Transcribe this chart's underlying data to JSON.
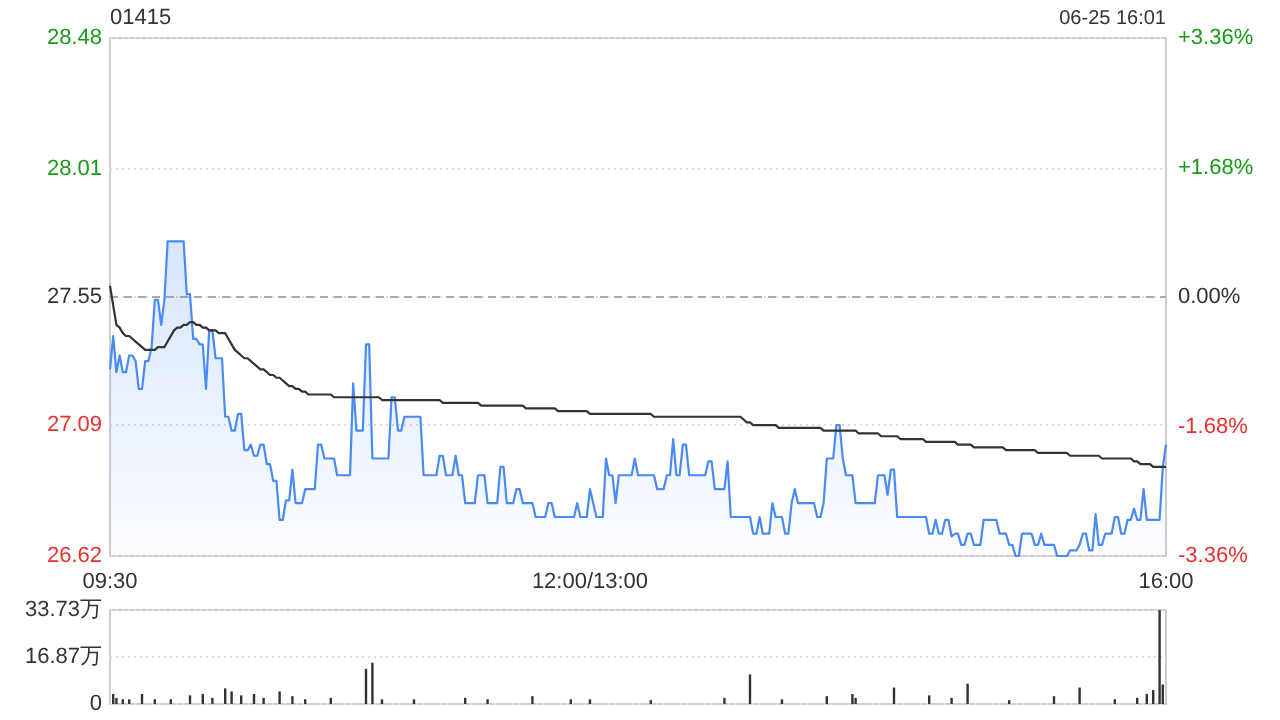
{
  "chart_data": [
    {
      "type": "line",
      "title": "01415",
      "annotations": [
        "06-25 16:01"
      ],
      "categories": [
        "09:30",
        null,
        null,
        null,
        null,
        null,
        null,
        null,
        null,
        null,
        null,
        null,
        null,
        null,
        null,
        null,
        null,
        null,
        null,
        null,
        null,
        null,
        null,
        null,
        null,
        null,
        null,
        null,
        null,
        null,
        null,
        null,
        null,
        null,
        null,
        null,
        null,
        null,
        null,
        null,
        null,
        null,
        null,
        null,
        null,
        null,
        null,
        null,
        null,
        null,
        null,
        null,
        null,
        null,
        null,
        null,
        null,
        null,
        null,
        null,
        null,
        null,
        null,
        null,
        null,
        null,
        null,
        null,
        null,
        null,
        null,
        null,
        null,
        null,
        null,
        null,
        null,
        null,
        null,
        null,
        null,
        null,
        null,
        null,
        null,
        null,
        null,
        null,
        null,
        null,
        null,
        null,
        null,
        null,
        null,
        null,
        null,
        null,
        null,
        null,
        null,
        null,
        null,
        null,
        null,
        null,
        null,
        null,
        null,
        null,
        null,
        null,
        null,
        null,
        null,
        null,
        null,
        null,
        null,
        null,
        null,
        null,
        null,
        null,
        null,
        null,
        null,
        null,
        null,
        null,
        null,
        null,
        null,
        null,
        null,
        null,
        null,
        null,
        null,
        null,
        null,
        null,
        null,
        null,
        null,
        null,
        null,
        null,
        null,
        null,
        "12:00/13:00",
        null,
        null,
        null,
        null,
        null,
        null,
        null,
        null,
        null,
        null,
        null,
        null,
        null,
        null,
        null,
        null,
        null,
        null,
        null,
        null,
        null,
        null,
        null,
        null,
        null,
        null,
        null,
        null,
        null,
        null,
        null,
        null,
        null,
        null,
        null,
        null,
        null,
        null,
        null,
        null,
        null,
        null,
        null,
        null,
        null,
        null,
        null,
        null,
        null,
        null,
        null,
        null,
        null,
        null,
        null,
        null,
        null,
        null,
        null,
        null,
        null,
        null,
        null,
        null,
        null,
        null,
        null,
        null,
        null,
        null,
        null,
        null,
        null,
        null,
        null,
        null,
        null,
        null,
        null,
        null,
        null,
        null,
        null,
        null,
        null,
        null,
        null,
        null,
        null,
        null,
        null,
        null,
        null,
        null,
        null,
        null,
        null,
        null,
        null,
        null,
        null,
        null,
        null,
        null,
        null,
        null,
        null,
        null,
        null,
        null,
        null,
        null,
        null,
        null,
        null,
        null,
        null,
        null,
        null,
        null,
        null,
        null,
        null,
        null,
        null,
        null,
        null,
        null,
        null,
        null,
        null,
        null,
        null,
        null,
        null,
        null,
        null,
        null,
        null,
        null,
        null,
        null,
        null,
        null,
        null,
        null,
        null,
        null,
        null,
        null,
        null,
        null,
        null,
        null,
        null,
        null,
        null,
        null,
        null,
        null,
        null,
        null,
        null,
        null,
        null,
        null,
        null,
        null,
        null,
        null,
        null,
        null,
        null,
        null,
        null,
        null,
        null,
        null,
        null,
        "16:00"
      ],
      "ylim": [
        26.62,
        28.48
      ],
      "yticks": [
        26.62,
        27.09,
        27.55,
        28.01,
        28.48
      ],
      "y2lim": [
        -3.36,
        3.36
      ],
      "y2ticks": [
        {
          "value": -3.36,
          "label": "-3.36%"
        },
        {
          "value": -1.68,
          "label": "-1.68%"
        },
        {
          "value": 0,
          "label": "0.00%"
        },
        {
          "value": 1.68,
          "label": "+1.68%"
        },
        {
          "value": 3.36,
          "label": "+3.36%"
        }
      ],
      "grid": "y",
      "ref_lines": [
        {
          "axis": "y",
          "value": 27.55,
          "color": "#aaaaaa",
          "line_style": "dashed"
        }
      ],
      "series": [
        {
          "type": "area",
          "color": "#4a8af4",
          "values": [
            27.29,
            27.41,
            27.28,
            27.34,
            27.28,
            27.28,
            27.34,
            27.34,
            27.32,
            27.22,
            27.22,
            27.32,
            27.32,
            27.37,
            27.54,
            27.54,
            27.45,
            27.54,
            27.75,
            27.75,
            27.75,
            27.75,
            27.75,
            27.75,
            27.56,
            27.56,
            27.4,
            27.4,
            27.38,
            27.38,
            27.22,
            27.43,
            27.43,
            27.33,
            27.33,
            27.33,
            27.12,
            27.12,
            27.07,
            27.07,
            27.13,
            27.13,
            27.0,
            27.0,
            27.02,
            26.98,
            26.98,
            27.02,
            27.02,
            26.95,
            26.95,
            26.89,
            26.89,
            26.75,
            26.75,
            26.82,
            26.82,
            26.93,
            26.81,
            26.81,
            26.81,
            26.86,
            26.86,
            26.86,
            26.86,
            27.02,
            27.02,
            26.97,
            26.97,
            26.97,
            26.97,
            26.91,
            26.91,
            26.91,
            26.91,
            26.91,
            27.24,
            27.07,
            27.07,
            27.07,
            27.38,
            27.38,
            26.97,
            26.97,
            26.97,
            26.97,
            26.97,
            26.97,
            27.19,
            27.19,
            27.07,
            27.07,
            27.12,
            27.12,
            27.12,
            27.12,
            27.12,
            27.12,
            26.91,
            26.91,
            26.91,
            26.91,
            26.91,
            26.98,
            26.98,
            26.91,
            26.91,
            26.91,
            26.98,
            26.91,
            26.91,
            26.81,
            26.81,
            26.81,
            26.81,
            26.91,
            26.91,
            26.91,
            26.81,
            26.81,
            26.81,
            26.81,
            26.94,
            26.94,
            26.81,
            26.81,
            26.81,
            26.86,
            26.86,
            26.81,
            26.81,
            26.81,
            26.81,
            26.76,
            26.76,
            26.76,
            26.76,
            26.81,
            26.81,
            26.76,
            26.76,
            26.76,
            26.76,
            26.76,
            26.76,
            26.76,
            26.81,
            26.76,
            26.76,
            26.76,
            26.86,
            26.81,
            26.76,
            26.76,
            26.76,
            26.97,
            26.91,
            26.91,
            26.81,
            26.91,
            26.91,
            26.91,
            26.91,
            26.91,
            26.97,
            26.91,
            26.91,
            26.91,
            26.91,
            26.91,
            26.91,
            26.86,
            26.86,
            26.86,
            26.91,
            26.91,
            27.04,
            26.91,
            26.91,
            27.02,
            27.02,
            26.91,
            26.91,
            26.91,
            26.91,
            26.91,
            26.91,
            26.96,
            26.96,
            26.86,
            26.86,
            26.86,
            26.86,
            26.96,
            26.76,
            26.76,
            26.76,
            26.76,
            26.76,
            26.76,
            26.76,
            26.7,
            26.7,
            26.76,
            26.7,
            26.7,
            26.7,
            26.81,
            26.76,
            26.76,
            26.76,
            26.7,
            26.7,
            26.81,
            26.86,
            26.81,
            26.81,
            26.81,
            26.81,
            26.81,
            26.81,
            26.76,
            26.76,
            26.81,
            26.97,
            26.97,
            26.97,
            27.09,
            27.09,
            26.97,
            26.91,
            26.91,
            26.91,
            26.81,
            26.81,
            26.81,
            26.81,
            26.81,
            26.81,
            26.81,
            26.91,
            26.91,
            26.91,
            26.84,
            26.93,
            26.93,
            26.76,
            26.76,
            26.76,
            26.76,
            26.76,
            26.76,
            26.76,
            26.76,
            26.76,
            26.76,
            26.7,
            26.7,
            26.75,
            26.7,
            26.7,
            26.75,
            26.75,
            26.69,
            26.7,
            26.7,
            26.66,
            26.66,
            26.7,
            26.7,
            26.66,
            26.66,
            26.66,
            26.75,
            26.75,
            26.75,
            26.75,
            26.75,
            26.7,
            26.7,
            26.7,
            26.66,
            26.66,
            26.62,
            26.62,
            26.7,
            26.7,
            26.7,
            26.7,
            26.66,
            26.66,
            26.7,
            26.66,
            26.66,
            26.66,
            26.66,
            26.62,
            26.62,
            26.62,
            26.62,
            26.64,
            26.64,
            26.64,
            26.66,
            26.7,
            26.7,
            26.64,
            26.64,
            26.77,
            26.66,
            26.66,
            26.7,
            26.7,
            26.7,
            26.76,
            26.76,
            26.7,
            26.7,
            26.75,
            26.75,
            26.79,
            26.75,
            26.75,
            26.86,
            26.75,
            26.75,
            26.75,
            26.75,
            26.75,
            26.94,
            27.02
          ]
        },
        {
          "color": "#333333",
          "values": [
            27.59,
            27.52,
            27.45,
            27.44,
            27.42,
            27.41,
            27.41,
            27.4,
            27.39,
            27.38,
            27.37,
            27.36,
            27.36,
            27.36,
            27.36,
            27.37,
            27.37,
            27.37,
            27.39,
            27.41,
            27.43,
            27.44,
            27.44,
            27.45,
            27.45,
            27.46,
            27.46,
            27.45,
            27.45,
            27.44,
            27.44,
            27.43,
            27.43,
            27.43,
            27.42,
            27.42,
            27.42,
            27.4,
            27.38,
            27.36,
            27.35,
            27.34,
            27.33,
            27.33,
            27.32,
            27.31,
            27.3,
            27.29,
            27.29,
            27.28,
            27.27,
            27.27,
            27.26,
            27.26,
            27.25,
            27.24,
            27.23,
            27.23,
            27.22,
            27.22,
            27.21,
            27.21,
            27.2,
            27.2,
            27.2,
            27.2,
            27.2,
            27.2,
            27.2,
            27.2,
            27.19,
            27.19,
            27.19,
            27.19,
            27.19,
            27.19,
            27.19,
            27.19,
            27.19,
            27.19,
            27.19,
            27.19,
            27.19,
            27.19,
            27.19,
            27.18,
            27.18,
            27.18,
            27.18,
            27.18,
            27.18,
            27.18,
            27.18,
            27.18,
            27.18,
            27.18,
            27.18,
            27.18,
            27.18,
            27.18,
            27.18,
            27.18,
            27.18,
            27.18,
            27.17,
            27.17,
            27.17,
            27.17,
            27.17,
            27.17,
            27.17,
            27.17,
            27.17,
            27.17,
            27.17,
            27.17,
            27.16,
            27.16,
            27.16,
            27.16,
            27.16,
            27.16,
            27.16,
            27.16,
            27.16,
            27.16,
            27.16,
            27.16,
            27.16,
            27.16,
            27.15,
            27.15,
            27.15,
            27.15,
            27.15,
            27.15,
            27.15,
            27.15,
            27.15,
            27.15,
            27.14,
            27.14,
            27.14,
            27.14,
            27.14,
            27.14,
            27.14,
            27.14,
            27.14,
            27.14,
            27.13,
            27.13,
            27.13,
            27.13,
            27.13,
            27.13,
            27.13,
            27.13,
            27.13,
            27.13,
            27.13,
            27.13,
            27.13,
            27.13,
            27.13,
            27.13,
            27.13,
            27.13,
            27.13,
            27.13,
            27.12,
            27.12,
            27.12,
            27.12,
            27.12,
            27.12,
            27.12,
            27.12,
            27.12,
            27.12,
            27.12,
            27.12,
            27.12,
            27.12,
            27.12,
            27.12,
            27.12,
            27.12,
            27.12,
            27.12,
            27.12,
            27.12,
            27.12,
            27.12,
            27.12,
            27.12,
            27.12,
            27.12,
            27.11,
            27.1,
            27.1,
            27.09,
            27.09,
            27.09,
            27.09,
            27.09,
            27.09,
            27.09,
            27.09,
            27.08,
            27.08,
            27.08,
            27.08,
            27.08,
            27.08,
            27.08,
            27.08,
            27.08,
            27.08,
            27.08,
            27.08,
            27.08,
            27.08,
            27.07,
            27.07,
            27.07,
            27.07,
            27.07,
            27.07,
            27.07,
            27.07,
            27.07,
            27.07,
            27.07,
            27.06,
            27.06,
            27.06,
            27.06,
            27.06,
            27.06,
            27.06,
            27.05,
            27.05,
            27.05,
            27.05,
            27.05,
            27.05,
            27.04,
            27.04,
            27.04,
            27.04,
            27.04,
            27.04,
            27.04,
            27.04,
            27.03,
            27.03,
            27.03,
            27.03,
            27.03,
            27.03,
            27.03,
            27.03,
            27.03,
            27.03,
            27.02,
            27.02,
            27.02,
            27.02,
            27.02,
            27.01,
            27.01,
            27.01,
            27.01,
            27.01,
            27.01,
            27.01,
            27.01,
            27.01,
            27.01,
            27.0,
            27.0,
            27.0,
            27.0,
            27.0,
            27.0,
            27.0,
            27.0,
            27.0,
            27.0,
            26.99,
            26.99,
            26.99,
            26.99,
            26.99,
            26.99,
            26.99,
            26.99,
            26.99,
            26.99,
            26.98,
            26.98,
            26.98,
            26.98,
            26.98,
            26.98,
            26.98,
            26.98,
            26.98,
            26.98,
            26.97,
            26.97,
            26.97,
            26.97,
            26.97,
            26.97,
            26.97,
            26.97,
            26.97,
            26.97,
            26.96,
            26.96,
            26.95,
            26.95,
            26.95,
            26.95,
            26.94,
            26.94,
            26.94,
            26.94,
            26.94
          ]
        }
      ]
    },
    {
      "type": "bar",
      "color": "#333333",
      "tick_labels": "y",
      "grid": "y",
      "categories": [
        null,
        null,
        null,
        null,
        null,
        null,
        null,
        null,
        null,
        null,
        null,
        null,
        null,
        null,
        null,
        null,
        null,
        null,
        null,
        null,
        null,
        null,
        null,
        null,
        null,
        null,
        null,
        null,
        null,
        null,
        null,
        null,
        null,
        null,
        null,
        null,
        null,
        null,
        null,
        null,
        null,
        null,
        null,
        null,
        null,
        null,
        null,
        null,
        null,
        null,
        null,
        null,
        null,
        null,
        null,
        null,
        null,
        null,
        null,
        null,
        null,
        null,
        null,
        null,
        null,
        null,
        null,
        null,
        null,
        null,
        null,
        null,
        null,
        null,
        null,
        null,
        null,
        null,
        null,
        null,
        null,
        null,
        null,
        null,
        null,
        null,
        null,
        null,
        null,
        null,
        null,
        null,
        null,
        null,
        null,
        null,
        null,
        null,
        null,
        null,
        null,
        null,
        null,
        null,
        null,
        null,
        null,
        null,
        null,
        null,
        null,
        null,
        null,
        null,
        null,
        null,
        null,
        null,
        null,
        null,
        null,
        null,
        null,
        null,
        null,
        null,
        null,
        null,
        null,
        null,
        null,
        null,
        null,
        null,
        null,
        null,
        null,
        null,
        null,
        null,
        null,
        null,
        null,
        null,
        null,
        null,
        null,
        null,
        null,
        null,
        null,
        null,
        null,
        null,
        null,
        null,
        null,
        null,
        null,
        null,
        null,
        null,
        null,
        null,
        null,
        null,
        null,
        null,
        null,
        null,
        null,
        null,
        null,
        null,
        null,
        null,
        null,
        null,
        null,
        null,
        null,
        null,
        null,
        null,
        null,
        null,
        null,
        null,
        null,
        null,
        null,
        null,
        null,
        null,
        null,
        null,
        null,
        null,
        null,
        null,
        null,
        null,
        null,
        null,
        null,
        null,
        null,
        null,
        null,
        null,
        null,
        null,
        null,
        null,
        null,
        null,
        null,
        null,
        null,
        null,
        null,
        null,
        null,
        null,
        null,
        null,
        null,
        null,
        null,
        null,
        null,
        null,
        null,
        null,
        null,
        null,
        null,
        null,
        null,
        null,
        null,
        null,
        null,
        null,
        null,
        null,
        null,
        null,
        null,
        null,
        null,
        null,
        null,
        null,
        null,
        null,
        null,
        null,
        null,
        null,
        null,
        null,
        null,
        null,
        null,
        null,
        null,
        null,
        null,
        null,
        null,
        null,
        null,
        null,
        null,
        null,
        null,
        null,
        null,
        null,
        null,
        null,
        null,
        null,
        null,
        null,
        null,
        null,
        null,
        null,
        null,
        null,
        null,
        null,
        null,
        null,
        null,
        null,
        null,
        null,
        null,
        null,
        null,
        null,
        null,
        null,
        null,
        null,
        null,
        null,
        null,
        null,
        null,
        null,
        null,
        null,
        null,
        null,
        null,
        null,
        null,
        null,
        null,
        null,
        null,
        null,
        null,
        null,
        null,
        null,
        null
      ],
      "ylim": [
        0,
        33.73
      ],
      "yticks": [
        0,
        {
          "value": 16.87,
          "label": "16.87万"
        },
        {
          "value": 33.73,
          "label": "33.73万"
        }
      ],
      "values": [
        null,
        3.6,
        2.2,
        null,
        1.7,
        null,
        1.7,
        null,
        null,
        null,
        3.6,
        null,
        null,
        null,
        1.7,
        null,
        null,
        null,
        null,
        1.7,
        null,
        null,
        null,
        null,
        null,
        3.1,
        null,
        null,
        null,
        3.6,
        null,
        null,
        2.2,
        null,
        null,
        null,
        5.6,
        null,
        4.5,
        null,
        null,
        3.1,
        null,
        null,
        null,
        3.6,
        null,
        null,
        2.2,
        null,
        null,
        null,
        null,
        4.5,
        null,
        null,
        null,
        2.8,
        null,
        null,
        null,
        1.7,
        null,
        null,
        null,
        null,
        null,
        null,
        null,
        2.2,
        null,
        null,
        null,
        null,
        null,
        null,
        null,
        null,
        null,
        null,
        12.6,
        null,
        14.8,
        null,
        null,
        1.7,
        null,
        null,
        null,
        null,
        null,
        null,
        null,
        null,
        null,
        1.7,
        null,
        null,
        null,
        null,
        null,
        null,
        null,
        null,
        null,
        null,
        null,
        null,
        null,
        null,
        null,
        2.2,
        null,
        null,
        null,
        null,
        null,
        null,
        1.7,
        null,
        null,
        null,
        null,
        null,
        null,
        null,
        null,
        null,
        null,
        null,
        null,
        null,
        2.8,
        null,
        null,
        null,
        null,
        null,
        null,
        null,
        null,
        null,
        null,
        null,
        1.7,
        null,
        null,
        null,
        null,
        null,
        1.7,
        null,
        null,
        null,
        null,
        null,
        null,
        null,
        null,
        null,
        null,
        null,
        null,
        null,
        null,
        null,
        null,
        null,
        null,
        1.4,
        null,
        null,
        null,
        null,
        null,
        null,
        null,
        null,
        null,
        null,
        null,
        null,
        null,
        null,
        null,
        null,
        null,
        null,
        null,
        null,
        null,
        null,
        2.2,
        null,
        null,
        null,
        null,
        null,
        null,
        null,
        10.6,
        null,
        null,
        null,
        null,
        null,
        null,
        null,
        null,
        null,
        1.7,
        null,
        null,
        null,
        null,
        null,
        null,
        null,
        null,
        null,
        null,
        null,
        null,
        null,
        2.8,
        null,
        null,
        null,
        null,
        null,
        null,
        null,
        3.6,
        2.2,
        null,
        null,
        null,
        null,
        null,
        null,
        null,
        null,
        null,
        null,
        null,
        5.9,
        null,
        null,
        null,
        null,
        null,
        null,
        null,
        null,
        null,
        null,
        3.1,
        null,
        null,
        null,
        null,
        null,
        null,
        2.2,
        null,
        null,
        null,
        null,
        7.3,
        null,
        null,
        null,
        null,
        null,
        null,
        null,
        null,
        null,
        null,
        null,
        null,
        1.4,
        null,
        null,
        null,
        null,
        null,
        null,
        null,
        null,
        null,
        null,
        null,
        null,
        null,
        2.8,
        null,
        null,
        null,
        null,
        null,
        null,
        null,
        5.9,
        null,
        null,
        null,
        null,
        null,
        null,
        null,
        null,
        null,
        null,
        1.7,
        null,
        null,
        null,
        null,
        null,
        null,
        2.2,
        null,
        null,
        3.6,
        null,
        5.0,
        null,
        33.7,
        7.0,
        null
      ]
    }
  ]
}
